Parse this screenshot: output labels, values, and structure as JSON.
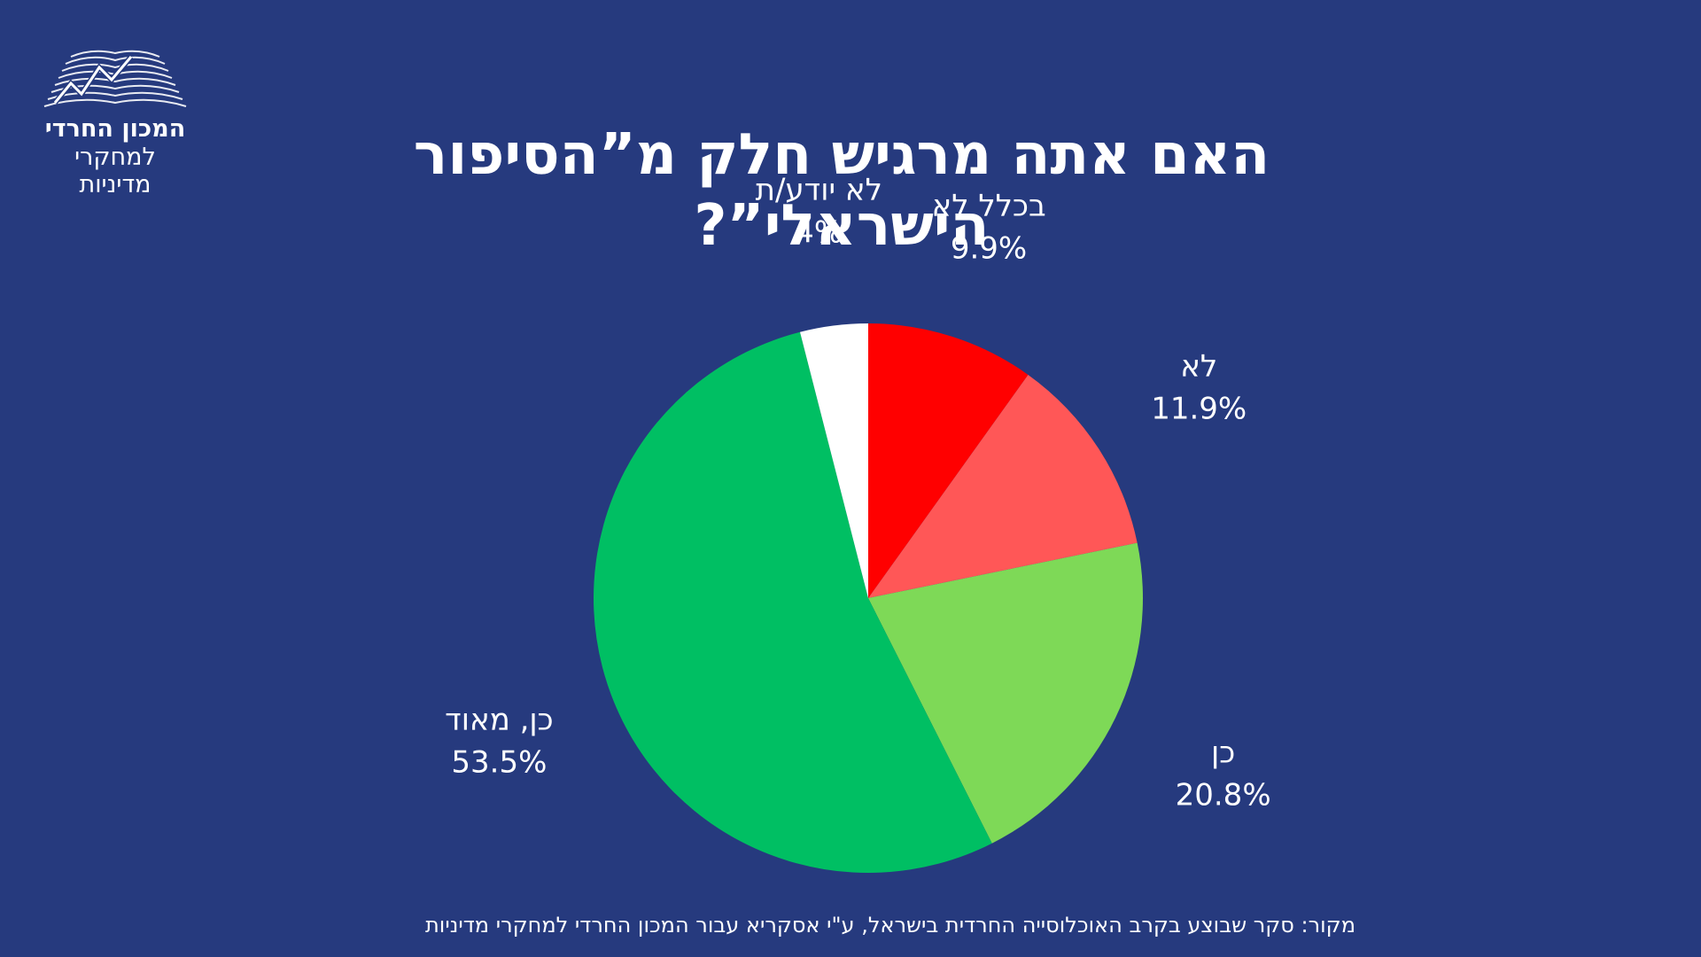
{
  "logo": {
    "line1": "המכון החרדי",
    "line2": "למחקרי מדיניות"
  },
  "title": "האם  אתה מרגיש חלק מ”הסיפור הישראלי”?",
  "source": "מקור: סקר שבוצע בקרב האוכלוסייה החרדית בישראל,  ע\"י אסקריא עבור המכון החרדי למחקרי מדיניות",
  "chart_data": {
    "type": "pie",
    "start": "12 o'clock, clockwise",
    "slices": [
      {
        "label": "בכלל לא",
        "value": 9.9,
        "display": "9.9%",
        "color": "#ff0000"
      },
      {
        "label": "לא",
        "value": 11.9,
        "display": "11.9%",
        "color": "#ff5757"
      },
      {
        "label": "כן",
        "value": 20.8,
        "display": "20.8%",
        "color": "#7ed957"
      },
      {
        "label": "כן, מאוד",
        "value": 53.5,
        "display": "53.5%",
        "color": "#00bf63"
      },
      {
        "label": "לא יודע/ת",
        "value": 4,
        "display": "4%",
        "color": "#ffffff"
      }
    ]
  }
}
